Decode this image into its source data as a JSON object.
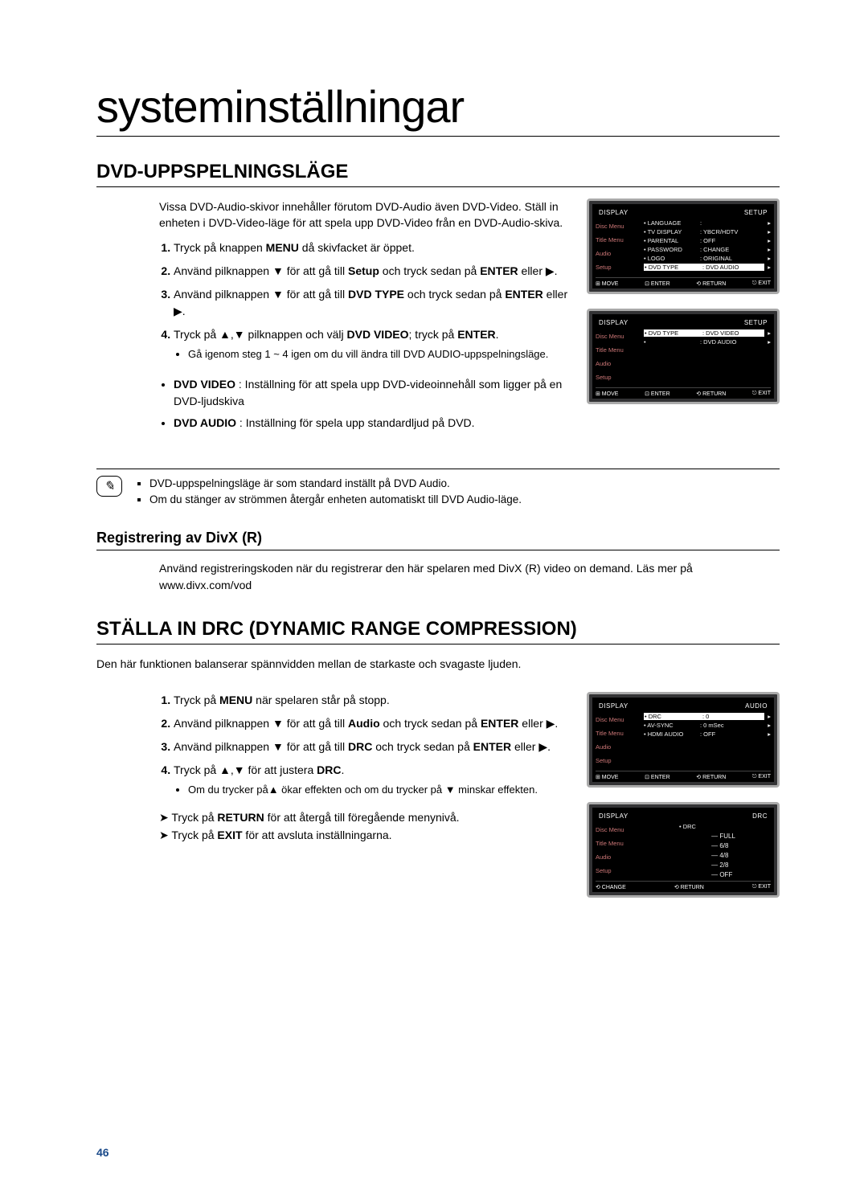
{
  "page": {
    "title": "systeminställningar",
    "number": "46"
  },
  "section1": {
    "title": "DVD-UPPSPELNINGSLÄGE",
    "intro": "Vissa DVD-Audio-skivor innehåller förutom DVD-Audio även DVD-Video. Ställ in enheten i DVD-Video-läge för att spela upp DVD-Video från en DVD-Audio-skiva.",
    "step1": "Tryck på knappen MENU då skivfacket är öppet.",
    "step2": "Använd pilknappen ▼ för att gå till Setup och tryck sedan på ENTER eller ▶.",
    "step3": "Använd pilknappen ▼ för att gå till DVD TYPE och tryck sedan på ENTER eller ▶.",
    "step4": "Tryck på ▲,▼ pilknappen och välj DVD VIDEO; tryck på ENTER.",
    "step4_sub": "Gå igenom steg 1 ~ 4 igen om du vill ändra till DVD AUDIO-uppspelningsläge.",
    "def1": "DVD VIDEO : Inställning för att spela upp DVD-videoinnehåll som ligger på en DVD-ljudskiva",
    "def2": "DVD AUDIO : Inställning för spela upp standardljud på DVD.",
    "note1": "DVD-uppspelningsläge är som standard inställt på DVD Audio.",
    "note2": "Om du stänger av strömmen återgår enheten automatiskt till DVD Audio-läge."
  },
  "subsection": {
    "title": "Registrering av DivX (R)",
    "body": "Använd registreringskoden när du registrerar den här spelaren med DivX (R) video on demand. Läs mer på www.divx.com/vod"
  },
  "section2": {
    "title": "STÄLLA IN DRC (DYNAMIC RANGE COMPRESSION)",
    "intro": "Den här funktionen balanserar spännvidden mellan de starkaste och svagaste ljuden.",
    "step1": "Tryck på MENU när spelaren står på stopp.",
    "step2": "Använd pilknappen ▼ för att gå till Audio och tryck sedan på ENTER eller ▶.",
    "step3": "Använd pilknappen ▼ för att gå till DRC och tryck sedan på ENTER eller ▶.",
    "step4": "Tryck på ▲,▼ för att justera DRC.",
    "step4_sub": "Om du trycker på▲ ökar effekten och om du trycker på ▼ minskar effekten.",
    "arrow1": "Tryck på RETURN för att återgå till föregående menynivå.",
    "arrow2": "Tryck på EXIT för att avsluta inställningarna."
  },
  "osd1": {
    "hl": "DISPLAY",
    "hr": "SETUP",
    "side": [
      "Disc Menu",
      "Title Menu",
      "Audio",
      "Setup"
    ],
    "rows": [
      {
        "k": "LANGUAGE",
        "v": "",
        "sel": false
      },
      {
        "k": "TV DISPLAY",
        "v": "YBCR/HDTV",
        "sel": false
      },
      {
        "k": "PARENTAL",
        "v": "OFF",
        "sel": false
      },
      {
        "k": "PASSWORD",
        "v": "CHANGE",
        "sel": false
      },
      {
        "k": "LOGO",
        "v": "ORIGINAL",
        "sel": false
      },
      {
        "k": "DVD TYPE",
        "v": "DVD AUDIO",
        "sel": true
      }
    ],
    "foot": [
      "⊞ MOVE",
      "⊡ ENTER",
      "⟲ RETURN",
      "⎋ EXIT"
    ]
  },
  "osd2": {
    "hl": "DISPLAY",
    "hr": "SETUP",
    "side": [
      "Disc Menu",
      "Title Menu",
      "Audio",
      "Setup"
    ],
    "rows": [
      {
        "k": "DVD TYPE",
        "v": "DVD VIDEO",
        "sel": true
      },
      {
        "k": "",
        "v": "DVD AUDIO",
        "sel": false
      }
    ],
    "foot": [
      "⊞ MOVE",
      "⊡ ENTER",
      "⟲ RETURN",
      "⎋ EXIT"
    ]
  },
  "osd3": {
    "hl": "DISPLAY",
    "hr": "AUDIO",
    "side": [
      "Disc Menu",
      "Title Menu",
      "Audio",
      "Setup"
    ],
    "rows": [
      {
        "k": "DRC",
        "v": "0",
        "sel": true
      },
      {
        "k": "AV-SYNC",
        "v": "0 mSec",
        "sel": false
      },
      {
        "k": "HDMI AUDIO",
        "v": "OFF",
        "sel": false
      }
    ],
    "foot": [
      "⊞ MOVE",
      "⊡ ENTER",
      "⟲ RETURN",
      "⎋ EXIT"
    ]
  },
  "osd4": {
    "hl": "DISPLAY",
    "hr": "DRC",
    "side": [
      "Disc Menu",
      "Title Menu",
      "Audio",
      "Setup"
    ],
    "key": "DRC",
    "scale": [
      "FULL",
      "6/8",
      "4/8",
      "2/8",
      "OFF"
    ],
    "foot": [
      "⟲ CHANGE",
      "⟲ RETURN",
      "⎋ EXIT"
    ]
  }
}
